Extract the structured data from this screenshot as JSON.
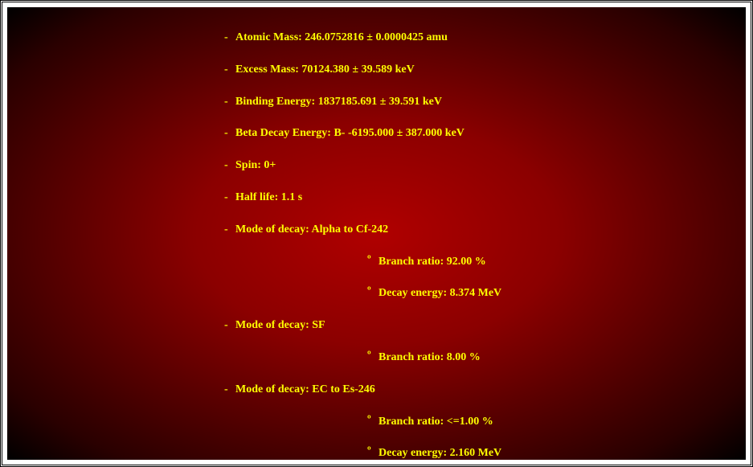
{
  "text_color": "#ffff00",
  "background_gradient": {
    "type": "radial",
    "stops": [
      "#b00000",
      "#8b0000",
      "#5a0000",
      "#2a0000",
      "#000000"
    ]
  },
  "frame_border_color": "#000000",
  "font_family": "Georgia, Times New Roman, serif",
  "font_size_pt": 11,
  "font_weight": "bold",
  "items": [
    {
      "level": 0,
      "bullet": "-",
      "text": "Atomic Mass: 246.0752816 ± 0.0000425 amu"
    },
    {
      "level": 0,
      "bullet": "-",
      "text": "Excess Mass: 70124.380 ± 39.589 keV"
    },
    {
      "level": 0,
      "bullet": "-",
      "text": "Binding Energy: 1837185.691 ± 39.591 keV"
    },
    {
      "level": 0,
      "bullet": "-",
      "text": "Beta Decay Energy: B- -6195.000 ± 387.000 keV"
    },
    {
      "level": 0,
      "bullet": "-",
      "text": "Spin: 0+"
    },
    {
      "level": 0,
      "bullet": "-",
      "text": "Half life: 1.1 s"
    },
    {
      "level": 0,
      "bullet": "-",
      "text": "Mode of decay: Alpha to Cf-242"
    },
    {
      "level": 1,
      "bullet": "º",
      "text": "Branch ratio: 92.00 %"
    },
    {
      "level": 1,
      "bullet": "º",
      "text": "Decay energy: 8.374 MeV"
    },
    {
      "level": 0,
      "bullet": "-",
      "text": "Mode of decay: SF"
    },
    {
      "level": 1,
      "bullet": "º",
      "text": "Branch ratio: 8.00 %"
    },
    {
      "level": 0,
      "bullet": "-",
      "text": "Mode of decay: EC to Es-246"
    },
    {
      "level": 1,
      "bullet": "º",
      "text": "Branch ratio: <=1.00 %"
    },
    {
      "level": 1,
      "bullet": "º",
      "text": "Decay energy: 2.160 MeV"
    }
  ]
}
